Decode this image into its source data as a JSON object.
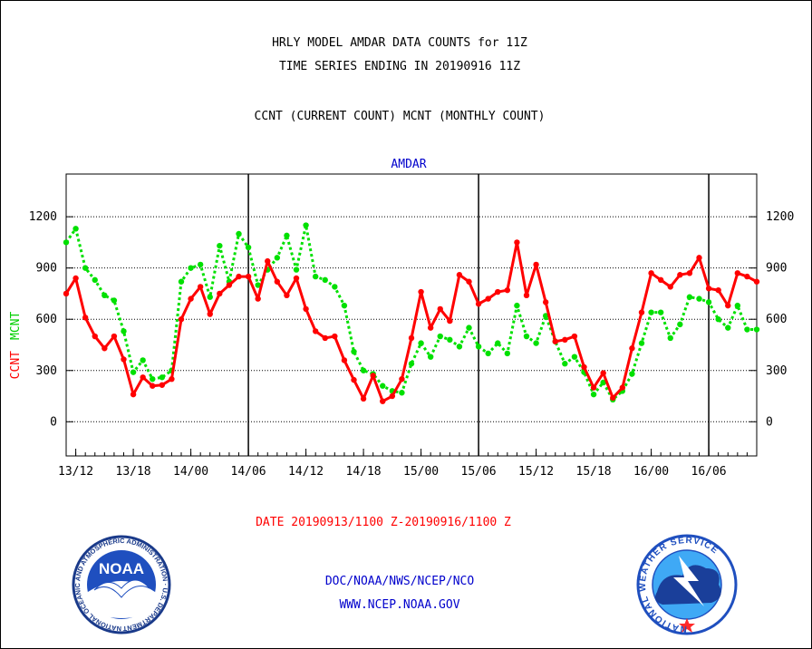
{
  "header": {
    "title_line1": "HRLY MODEL AMDAR DATA COUNTS for 11Z",
    "title_line2": "TIME SERIES ENDING IN 20190916 11Z",
    "subtitle": "CCNT (CURRENT COUNT) MCNT (MONTHLY COUNT)"
  },
  "footer": {
    "date_range": "DATE 20190913/1100 Z-20190916/1100 Z",
    "org": "DOC/NOAA/NWS/NCEP/NCO",
    "url": "WWW.NCEP.NOAA.GOV"
  },
  "logos": {
    "noaa_text": "NOAA",
    "noaa_ring": "NATIONAL OCEANIC AND ATMOSPHERIC ADMINISTRATION · U.S. DEPARTMENT OF COMMERCE ·",
    "nws_ring": "NATIONAL WEATHER SERVICE"
  },
  "colors": {
    "ccnt": "#ff0000",
    "mcnt": "#00e000",
    "grid": "#000000",
    "date_text": "#ff0000",
    "footer_text": "#0000cc",
    "panel_label": "#0000cc"
  },
  "chart_data": {
    "type": "line",
    "panel_label": "AMDAR",
    "ylabel_parts": [
      "CCNT",
      "MCNT"
    ],
    "ylim": [
      -200,
      1450
    ],
    "yticks": [
      0,
      300,
      600,
      900,
      1200
    ],
    "xlim": [
      0,
      72
    ],
    "x_tick_positions": [
      1,
      7,
      13,
      19,
      25,
      31,
      37,
      43,
      49,
      55,
      61,
      67
    ],
    "x_tick_labels": [
      "13/12",
      "13/18",
      "14/00",
      "14/06",
      "14/12",
      "14/18",
      "15/00",
      "15/06",
      "15/12",
      "15/18",
      "16/00",
      "16/06"
    ],
    "day_boundaries": [
      19,
      43,
      67
    ],
    "grid": "horizontal-dotted",
    "legend": "left-axis-label",
    "series": [
      {
        "name": "CCNT",
        "style": "solid",
        "values": [
          750,
          840,
          610,
          500,
          430,
          500,
          365,
          160,
          260,
          210,
          215,
          250,
          600,
          720,
          790,
          630,
          750,
          800,
          850,
          850,
          720,
          940,
          820,
          740,
          840,
          660,
          530,
          490,
          500,
          360,
          245,
          135,
          270,
          120,
          150,
          250,
          490,
          760,
          550,
          660,
          590,
          860,
          820,
          690,
          720,
          760,
          770,
          1050,
          740,
          920,
          700,
          470,
          480,
          500,
          320,
          200,
          285,
          140,
          200,
          430,
          640,
          870,
          830,
          790,
          860,
          870,
          960,
          780,
          770,
          680,
          870,
          850,
          820
        ]
      },
      {
        "name": "MCNT",
        "style": "dotted",
        "values": [
          1050,
          1130,
          900,
          830,
          740,
          710,
          530,
          290,
          360,
          250,
          260,
          300,
          820,
          900,
          920,
          730,
          1030,
          820,
          1100,
          1020,
          800,
          890,
          960,
          1090,
          890,
          1150,
          850,
          830,
          790,
          680,
          410,
          300,
          280,
          210,
          180,
          170,
          340,
          460,
          380,
          500,
          480,
          440,
          550,
          440,
          400,
          460,
          400,
          680,
          500,
          460,
          620,
          470,
          340,
          380,
          290,
          160,
          230,
          130,
          180,
          280,
          460,
          640,
          640,
          490,
          570,
          730,
          720,
          700,
          600,
          550,
          680,
          540,
          540
        ]
      }
    ]
  }
}
